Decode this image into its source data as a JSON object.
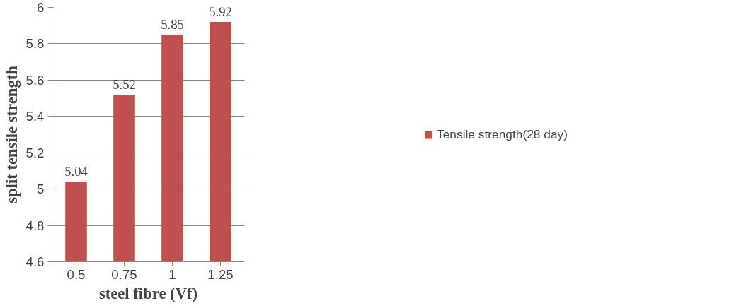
{
  "chart_data": {
    "type": "bar",
    "xlabel": "steel fibre (Vf)",
    "ylabel": "split tensile strength",
    "categories": [
      "0.5",
      "0.75",
      "1",
      "1.25"
    ],
    "series": [
      {
        "name": "Tensile strength(28 day)",
        "color": "#c0504d",
        "values": [
          5.04,
          5.52,
          5.85,
          5.92
        ]
      }
    ],
    "ylim": [
      4.6,
      6
    ],
    "yticks": [
      4.6,
      4.8,
      5,
      5.2,
      5.4,
      5.6,
      5.8,
      6
    ],
    "grid": "y",
    "legend": "right",
    "data_labels": true
  }
}
